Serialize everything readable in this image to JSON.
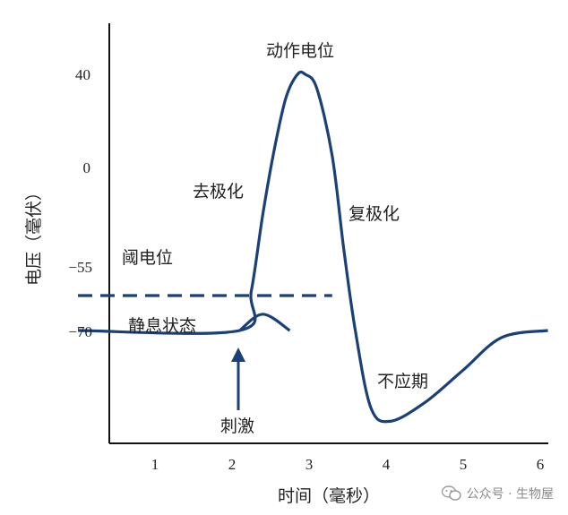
{
  "chart_data": {
    "type": "line",
    "xlabel": "时间（毫秒）",
    "ylabel": "电压（毫伏）",
    "x_ticks": [
      "1",
      "2",
      "3",
      "4",
      "5",
      "6"
    ],
    "y_ticks": [
      "40",
      "0",
      "−55",
      "−70"
    ],
    "series": [
      {
        "points": [
          [
            0,
            -70
          ],
          [
            2.1,
            -70
          ],
          [
            2.25,
            -53
          ],
          [
            2.4,
            -20
          ],
          [
            2.55,
            8
          ],
          [
            2.7,
            30
          ],
          [
            2.85,
            40
          ],
          [
            2.95,
            40
          ],
          [
            3.1,
            34
          ],
          [
            3.3,
            5
          ],
          [
            3.45,
            -35
          ],
          [
            3.6,
            -70
          ],
          [
            3.8,
            -103
          ],
          [
            4.05,
            -109
          ],
          [
            4.5,
            -101
          ],
          [
            5.0,
            -87
          ],
          [
            5.5,
            -73
          ],
          [
            6.1,
            -70
          ]
        ]
      },
      {
        "style": "dashed",
        "points": [
          [
            0,
            -55
          ],
          [
            3.3,
            -55
          ]
        ]
      },
      {
        "points": [
          [
            2.1,
            -70
          ],
          [
            2.4,
            -63
          ],
          [
            2.75,
            -70
          ]
        ]
      }
    ],
    "annotations": [
      {
        "text": "动作电位"
      },
      {
        "text": "去极化"
      },
      {
        "text": "复极化"
      },
      {
        "text": "阈电位"
      },
      {
        "text": "静息状态"
      },
      {
        "text": "不应期"
      },
      {
        "text": "刺激"
      }
    ]
  },
  "watermark": {
    "text": "公众号 · 生物屋"
  },
  "colors": {
    "curve": "#1b3f77",
    "axis": "#111111"
  }
}
